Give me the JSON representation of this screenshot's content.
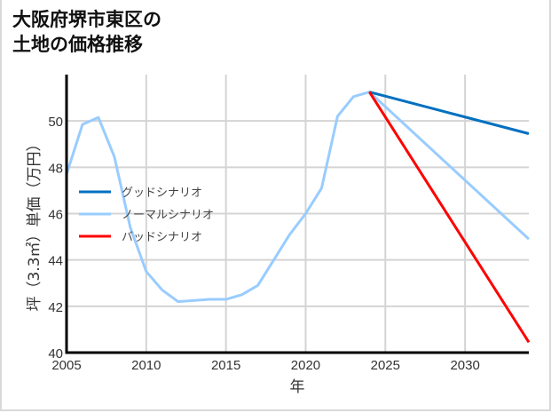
{
  "title_line1": "大阪府堺市東区の",
  "title_line2": "土地の価格推移",
  "chart_data": {
    "type": "line",
    "title": "大阪府堺市東区の土地の価格推移",
    "xlabel": "年",
    "ylabel": "坪（3.3㎡）単価（万円）",
    "xlim": [
      2005,
      2034
    ],
    "ylim": [
      40,
      52
    ],
    "xticks": [
      2005,
      2010,
      2015,
      2020,
      2025,
      2030
    ],
    "yticks": [
      40,
      42,
      44,
      46,
      48,
      50
    ],
    "grid": true,
    "legend_position": "left-middle",
    "series": [
      {
        "name": "グッドシナリオ",
        "color": "#0070c0",
        "x": [
          2024,
          2034
        ],
        "values": [
          51.25,
          49.45
        ]
      },
      {
        "name": "ノーマルシナリオ",
        "color": "#99ccff",
        "x": [
          2005,
          2006,
          2007,
          2008,
          2009,
          2010,
          2011,
          2012,
          2013,
          2014,
          2015,
          2016,
          2017,
          2018,
          2019,
          2020,
          2021,
          2022,
          2023,
          2024,
          2034
        ],
        "values": [
          47.7,
          49.85,
          50.15,
          48.45,
          45.4,
          43.5,
          42.7,
          42.2,
          42.25,
          42.3,
          42.3,
          42.5,
          42.9,
          44.0,
          45.1,
          46.0,
          47.1,
          50.2,
          51.05,
          51.25,
          44.9
        ]
      },
      {
        "name": "バッドシナリオ",
        "color": "#ff0000",
        "x": [
          2024,
          2034
        ],
        "values": [
          51.25,
          40.45
        ]
      }
    ]
  }
}
